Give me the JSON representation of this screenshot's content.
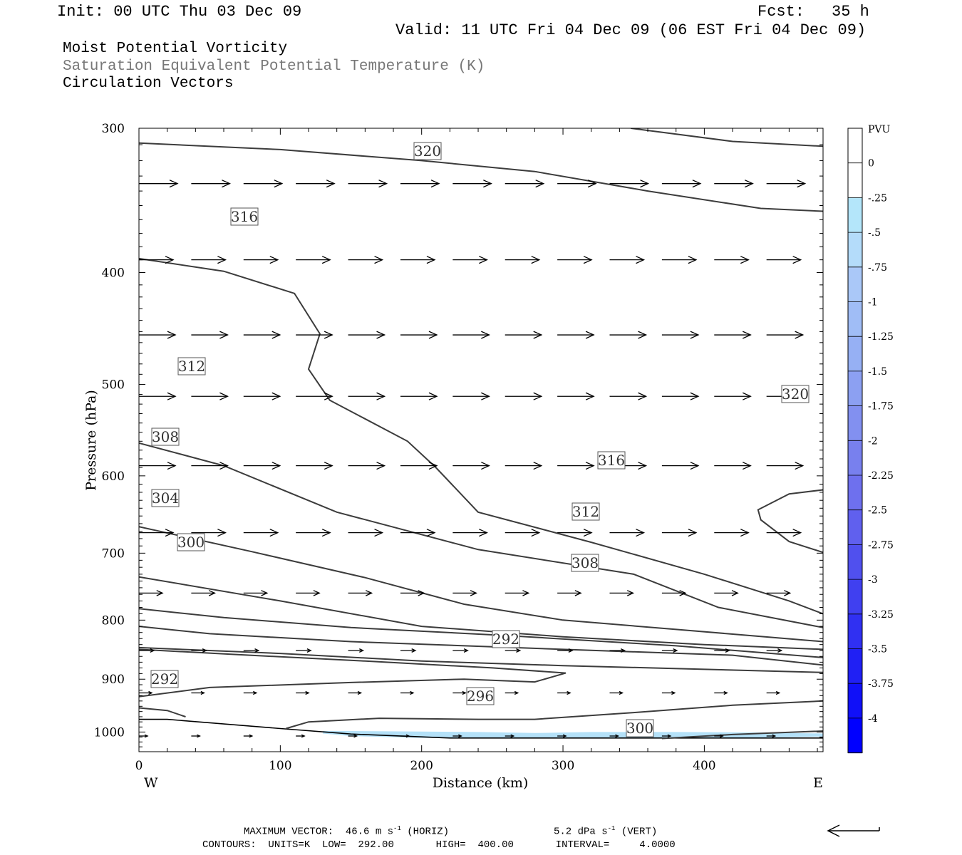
{
  "header": {
    "init": "Init: 00 UTC Thu 03 Dec 09",
    "fcst_label": "Fcst:",
    "fcst_value": "35 h",
    "valid": "Valid: 11 UTC Fri 04 Dec 09 (06 EST Fri 04 Dec 09)"
  },
  "fields": [
    "Moist Potential Vorticity",
    "Saturation Equivalent Potential Temperature (K)",
    "Circulation Vectors"
  ],
  "footer": {
    "max_vector": "MAXIMUM VECTOR:  46.6 m s",
    "horiz_unit": "(HORIZ)",
    "vert_value": "5.2 dPa s",
    "vert_unit": "(VERT)",
    "exp": "-1",
    "contours": "CONTOURS:  UNITS=K  LOW=  292.00       HIGH=  400.00       INTERVAL=     4.0000"
  },
  "chart_data": {
    "type": "cross-section",
    "xlabel": "Distance (km)",
    "ylabel": "Pressure (hPa)",
    "x_range": [
      0,
      484
    ],
    "y_range": [
      300,
      1040
    ],
    "y_log": true,
    "x_ticks": [
      0,
      100,
      200,
      300,
      400
    ],
    "x_tick_labels": [
      "0",
      "100",
      "200",
      "300",
      "400"
    ],
    "y_ticks": [
      300,
      400,
      500,
      600,
      700,
      800,
      900,
      1000
    ],
    "y_tick_labels": [
      "300",
      "400",
      "500",
      "600",
      "700",
      "800",
      "900",
      "1000"
    ],
    "end_labels": {
      "left": "W",
      "right": "E"
    },
    "colorbar": {
      "label": "PVU",
      "boundaries": [
        0.5,
        0,
        -0.25,
        -0.5,
        -0.75,
        -1,
        -1.25,
        -1.5,
        -1.75,
        -2,
        -2.25,
        -2.5,
        -2.75,
        -3,
        -3.25,
        -3.5,
        -3.75,
        -4,
        -4.25
      ],
      "tick_labels": [
        "0",
        "-.25",
        "-.5",
        "-.75",
        "-1",
        "-1.25",
        "-1.5",
        "-1.75",
        "-2",
        "-2.25",
        "-2.5",
        "-2.75",
        "-3",
        "-3.25",
        "-3.5",
        "-3.75",
        "-4"
      ],
      "colors": [
        "#ffffff",
        "#ffffff",
        "#b4e6fa",
        "#b4dcfa",
        "#aac8f8",
        "#a0bdf6",
        "#96b0f4",
        "#8ca0f2",
        "#8290f0",
        "#7880ee",
        "#6e70ee",
        "#6060ee",
        "#5050ee",
        "#4040f0",
        "#3030f2",
        "#2020f4",
        "#1010f8",
        "#0000ff"
      ]
    },
    "theta_contours": [
      {
        "label": "320",
        "points": [
          [
            0,
            309
          ],
          [
            100,
            313
          ],
          [
            200,
            320
          ],
          [
            280,
            327
          ],
          [
            360,
            340
          ],
          [
            440,
            352
          ],
          [
            484,
            354
          ]
        ]
      },
      {
        "label": "320",
        "points": [
          [
            348,
            300
          ],
          [
            420,
            308
          ],
          [
            484,
            311
          ]
        ]
      },
      {
        "label": "316",
        "points": [
          [
            0,
            389
          ],
          [
            60,
            399
          ],
          [
            110,
            417
          ],
          [
            128,
            452
          ],
          [
            120,
            485
          ],
          [
            135,
            516
          ],
          [
            190,
            560
          ],
          [
            210,
            590
          ],
          [
            240,
            645
          ],
          [
            320,
            685
          ],
          [
            400,
            730
          ],
          [
            460,
            770
          ],
          [
            484,
            790
          ]
        ]
      },
      {
        "label": "320",
        "points": [
          [
            484,
            699
          ],
          [
            460,
            684
          ],
          [
            440,
            655
          ],
          [
            438,
            642
          ],
          [
            460,
            622
          ],
          [
            484,
            617
          ]
        ]
      },
      {
        "label": "312",
        "points": [
          [
            0,
            562
          ],
          [
            60,
            588
          ],
          [
            140,
            645
          ],
          [
            240,
            695
          ],
          [
            350,
            730
          ],
          [
            410,
            780
          ],
          [
            484,
            812
          ]
        ]
      },
      {
        "label": "308",
        "points": [
          [
            0,
            664
          ],
          [
            80,
            698
          ],
          [
            160,
            735
          ],
          [
            230,
            775
          ],
          [
            300,
            800
          ],
          [
            380,
            815
          ],
          [
            484,
            835
          ]
        ]
      },
      {
        "label": "304",
        "points": [
          [
            0,
            734
          ],
          [
            100,
            770
          ],
          [
            200,
            810
          ],
          [
            300,
            827
          ],
          [
            400,
            840
          ],
          [
            484,
            848
          ]
        ]
      },
      {
        "label": "300",
        "points": [
          [
            0,
            782
          ],
          [
            60,
            796
          ],
          [
            150,
            812
          ],
          [
            260,
            825
          ],
          [
            380,
            842
          ],
          [
            484,
            862
          ]
        ]
      },
      {
        "label": "",
        "points": [
          [
            0,
            810
          ],
          [
            50,
            822
          ],
          [
            150,
            835
          ],
          [
            300,
            848
          ],
          [
            420,
            858
          ],
          [
            484,
            875
          ]
        ]
      },
      {
        "label": "",
        "points": [
          [
            0,
            845
          ],
          [
            100,
            855
          ],
          [
            200,
            868
          ],
          [
            300,
            876
          ],
          [
            484,
            888
          ]
        ]
      },
      {
        "label": "292",
        "points": [
          [
            0,
            932
          ],
          [
            50,
            915
          ],
          [
            150,
            906
          ],
          [
            230,
            900
          ],
          [
            280,
            905
          ],
          [
            302,
            889
          ],
          [
            250,
            880
          ],
          [
            160,
            868
          ],
          [
            70,
            857
          ],
          [
            0,
            848
          ]
        ]
      },
      {
        "label": "292",
        "points": [
          [
            0,
            953
          ],
          [
            20,
            958
          ],
          [
            33,
            970
          ]
        ]
      },
      {
        "label": "296",
        "points": [
          [
            104,
            993
          ],
          [
            120,
            980
          ],
          [
            170,
            973
          ],
          [
            240,
            975
          ],
          [
            280,
            975
          ],
          [
            350,
            962
          ],
          [
            420,
            948
          ],
          [
            484,
            940
          ]
        ]
      },
      {
        "label": "300",
        "points": [
          [
            370,
            1013
          ],
          [
            420,
            1005
          ],
          [
            484,
            998
          ]
        ]
      }
    ],
    "terrain_pressure": {
      "x": [
        0,
        20,
        100,
        150,
        220,
        300,
        400,
        484
      ],
      "p": [
        975,
        975,
        993,
        1004,
        1012,
        1012,
        1012,
        1012
      ]
    },
    "mpv_shading": {
      "level": "-.25",
      "x": [
        130,
        150,
        200,
        240,
        280,
        320,
        380,
        440,
        484
      ],
      "top": [
        998,
        998,
        999,
        1000,
        1002,
        1000,
        1000,
        1001,
        1003
      ],
      "bottom": [
        1003,
        1008,
        1012,
        1012,
        1012,
        1012,
        1012,
        1011,
        1009
      ]
    },
    "vector_rows": [
      {
        "p": 335,
        "len": 0.9,
        "x": [
          0,
          37,
          74,
          111,
          148,
          185,
          222,
          259,
          296,
          333,
          370,
          407,
          444
        ]
      },
      {
        "p": 390,
        "len": 0.8,
        "x": [
          0,
          37,
          74,
          111,
          148,
          185,
          222,
          259,
          296,
          333,
          370,
          407,
          444
        ]
      },
      {
        "p": 453,
        "len": 0.85,
        "x": [
          0,
          37,
          74,
          111,
          148,
          185,
          222,
          259,
          296,
          333,
          370,
          407,
          444
        ]
      },
      {
        "p": 512,
        "len": 0.85,
        "x": [
          0,
          37,
          74,
          111,
          148,
          185,
          222,
          259,
          296,
          333,
          370,
          407,
          444
        ]
      },
      {
        "p": 588,
        "len": 0.85,
        "x": [
          0,
          37,
          74,
          111,
          148,
          185,
          222,
          259,
          296,
          333,
          370,
          407,
          444
        ]
      },
      {
        "p": 672,
        "len": 0.8,
        "x": [
          0,
          37,
          74,
          111,
          148,
          185,
          222,
          259,
          296,
          333,
          370,
          407,
          444
        ]
      },
      {
        "p": 758,
        "len": 0.55,
        "x": [
          0,
          37,
          74,
          111,
          148,
          185,
          222,
          259,
          296,
          333,
          370,
          407,
          444
        ]
      },
      {
        "p": 850,
        "len": 0.35,
        "x": [
          0,
          37,
          74,
          111,
          148,
          185,
          222,
          259,
          296,
          333,
          370,
          407,
          444
        ]
      },
      {
        "p": 925,
        "len": 0.3,
        "x": [
          0,
          37,
          74,
          111,
          148,
          185,
          222,
          259,
          296,
          333,
          370,
          407,
          444
        ]
      },
      {
        "p": 1008,
        "len": 0.2,
        "x": [
          0,
          37,
          74,
          111,
          148,
          185,
          222,
          259,
          296,
          333,
          370,
          407,
          444
        ]
      }
    ]
  }
}
